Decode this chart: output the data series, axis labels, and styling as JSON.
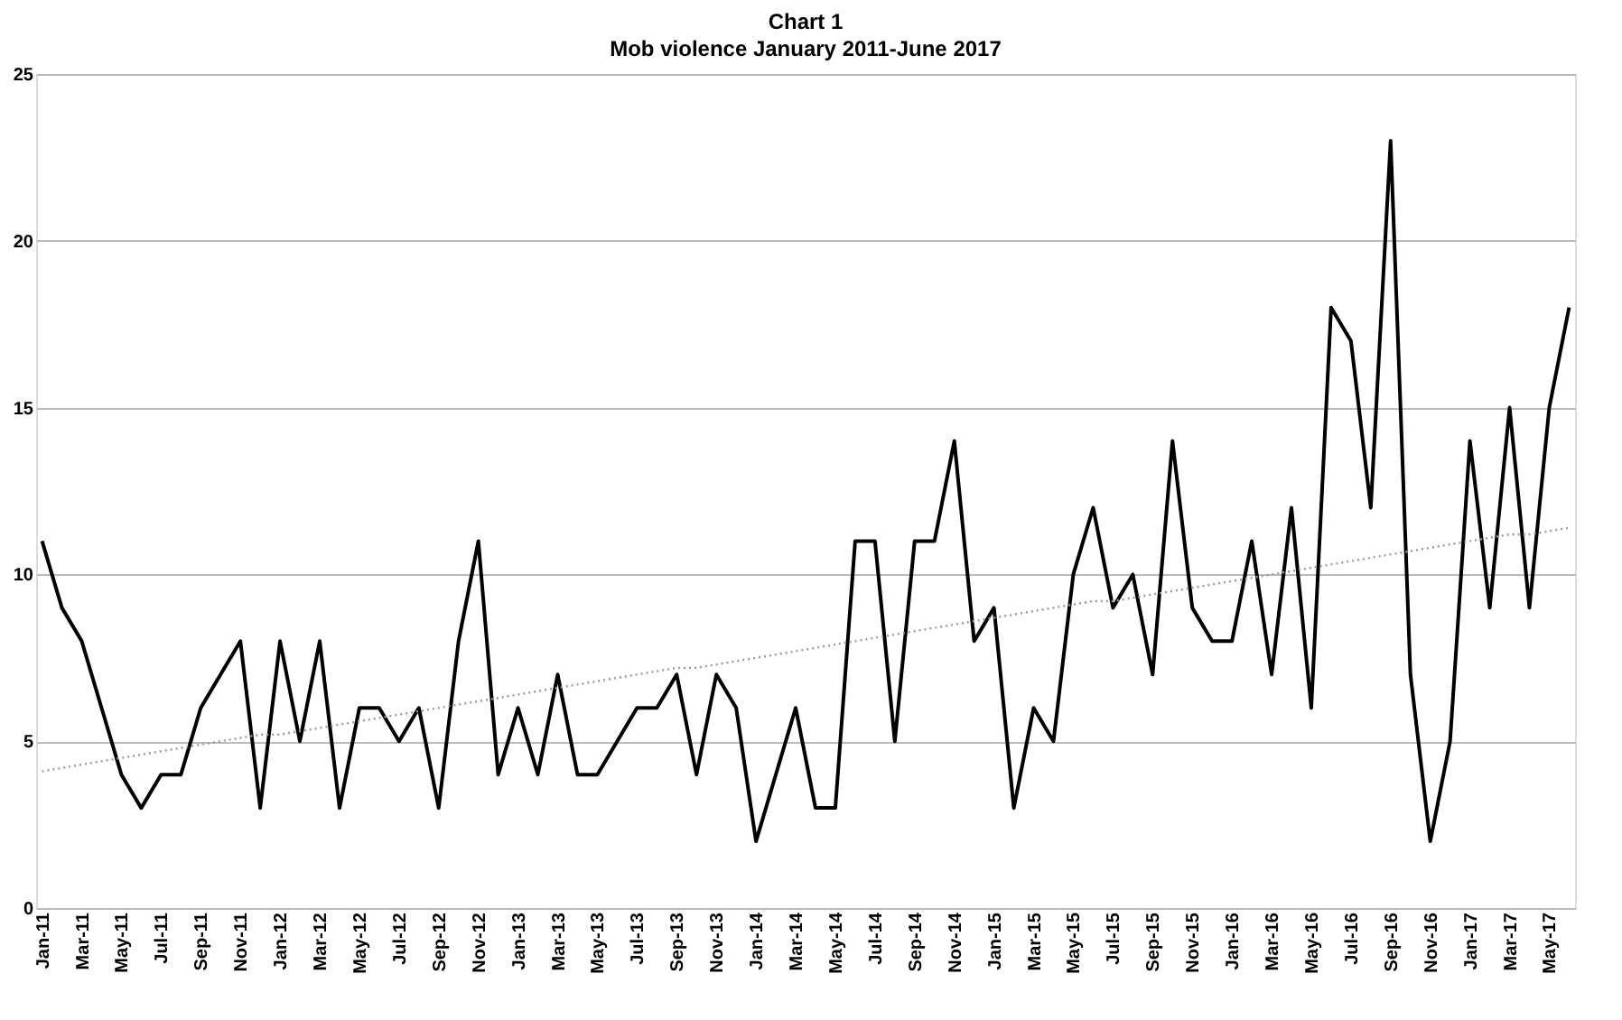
{
  "chart_data": {
    "type": "line",
    "title": "Chart 1",
    "subtitle": "Mob violence January 2011-June 2017",
    "categories": [
      "Jan-11",
      null,
      "Mar-11",
      null,
      "May-11",
      null,
      "Jul-11",
      null,
      "Sep-11",
      null,
      "Nov-11",
      null,
      "Jan-12",
      null,
      "Mar-12",
      null,
      "May-12",
      null,
      "Jul-12",
      null,
      "Sep-12",
      null,
      "Nov-12",
      null,
      "Jan-13",
      null,
      "Mar-13",
      null,
      "May-13",
      null,
      "Jul-13",
      null,
      "Sep-13",
      null,
      "Nov-13",
      null,
      "Jan-14",
      null,
      "Mar-14",
      null,
      "May-14",
      null,
      "Jul-14",
      null,
      "Sep-14",
      null,
      "Nov-14",
      null,
      "Jan-15",
      null,
      "Mar-15",
      null,
      "May-15",
      null,
      "Jul-15",
      null,
      "Sep-15",
      null,
      "Nov-15",
      null,
      "Jan-16",
      null,
      "Mar-16",
      null,
      "May-16",
      null,
      "Jul-16",
      null,
      "Sep-16",
      null,
      "Nov-16",
      null,
      "Jan-17",
      null,
      "Mar-17",
      null,
      "May-17",
      null
    ],
    "series": [
      {
        "color": "#000000",
        "line_style": "solid",
        "values": [
          11,
          9,
          8,
          6,
          4,
          3,
          4,
          4,
          6,
          7,
          8,
          3,
          8,
          5,
          8,
          3,
          6,
          6,
          5,
          6,
          3,
          8,
          11,
          4,
          6,
          4,
          7,
          4,
          4,
          5,
          6,
          6,
          7,
          4,
          7,
          6,
          2,
          4,
          6,
          3,
          3,
          11,
          11,
          5,
          11,
          11,
          14,
          8,
          9,
          3,
          6,
          5,
          10,
          12,
          9,
          10,
          7,
          14,
          9,
          8,
          8,
          11,
          7,
          12,
          6,
          18,
          17,
          12,
          23,
          7,
          2,
          5,
          14,
          9,
          15,
          9,
          15,
          18
        ]
      },
      {
        "color": "#9a9a9a",
        "line_style": "dotted",
        "values": [
          4.1,
          4.2,
          4.3,
          4.4,
          4.5,
          4.6,
          4.7,
          4.8,
          4.9,
          5.0,
          5.1,
          5.2,
          5.2,
          5.3,
          5.4,
          5.5,
          5.6,
          5.7,
          5.8,
          5.9,
          6.0,
          6.1,
          6.2,
          6.3,
          6.4,
          6.5,
          6.6,
          6.7,
          6.8,
          6.9,
          7.0,
          7.1,
          7.2,
          7.2,
          7.3,
          7.4,
          7.5,
          7.6,
          7.7,
          7.8,
          7.9,
          8.0,
          8.1,
          8.2,
          8.3,
          8.4,
          8.5,
          8.6,
          8.7,
          8.8,
          8.9,
          9.0,
          9.1,
          9.2,
          9.2,
          9.3,
          9.4,
          9.5,
          9.6,
          9.7,
          9.8,
          9.9,
          10.0,
          10.1,
          10.2,
          10.3,
          10.4,
          10.5,
          10.6,
          10.7,
          10.8,
          10.9,
          11.0,
          11.1,
          11.2,
          11.2,
          11.3,
          11.4
        ]
      }
    ],
    "ylim": [
      0,
      25
    ],
    "yticks": [
      0,
      5,
      10,
      15,
      20,
      25
    ],
    "grid": "y",
    "legend": false,
    "marker": "none"
  }
}
